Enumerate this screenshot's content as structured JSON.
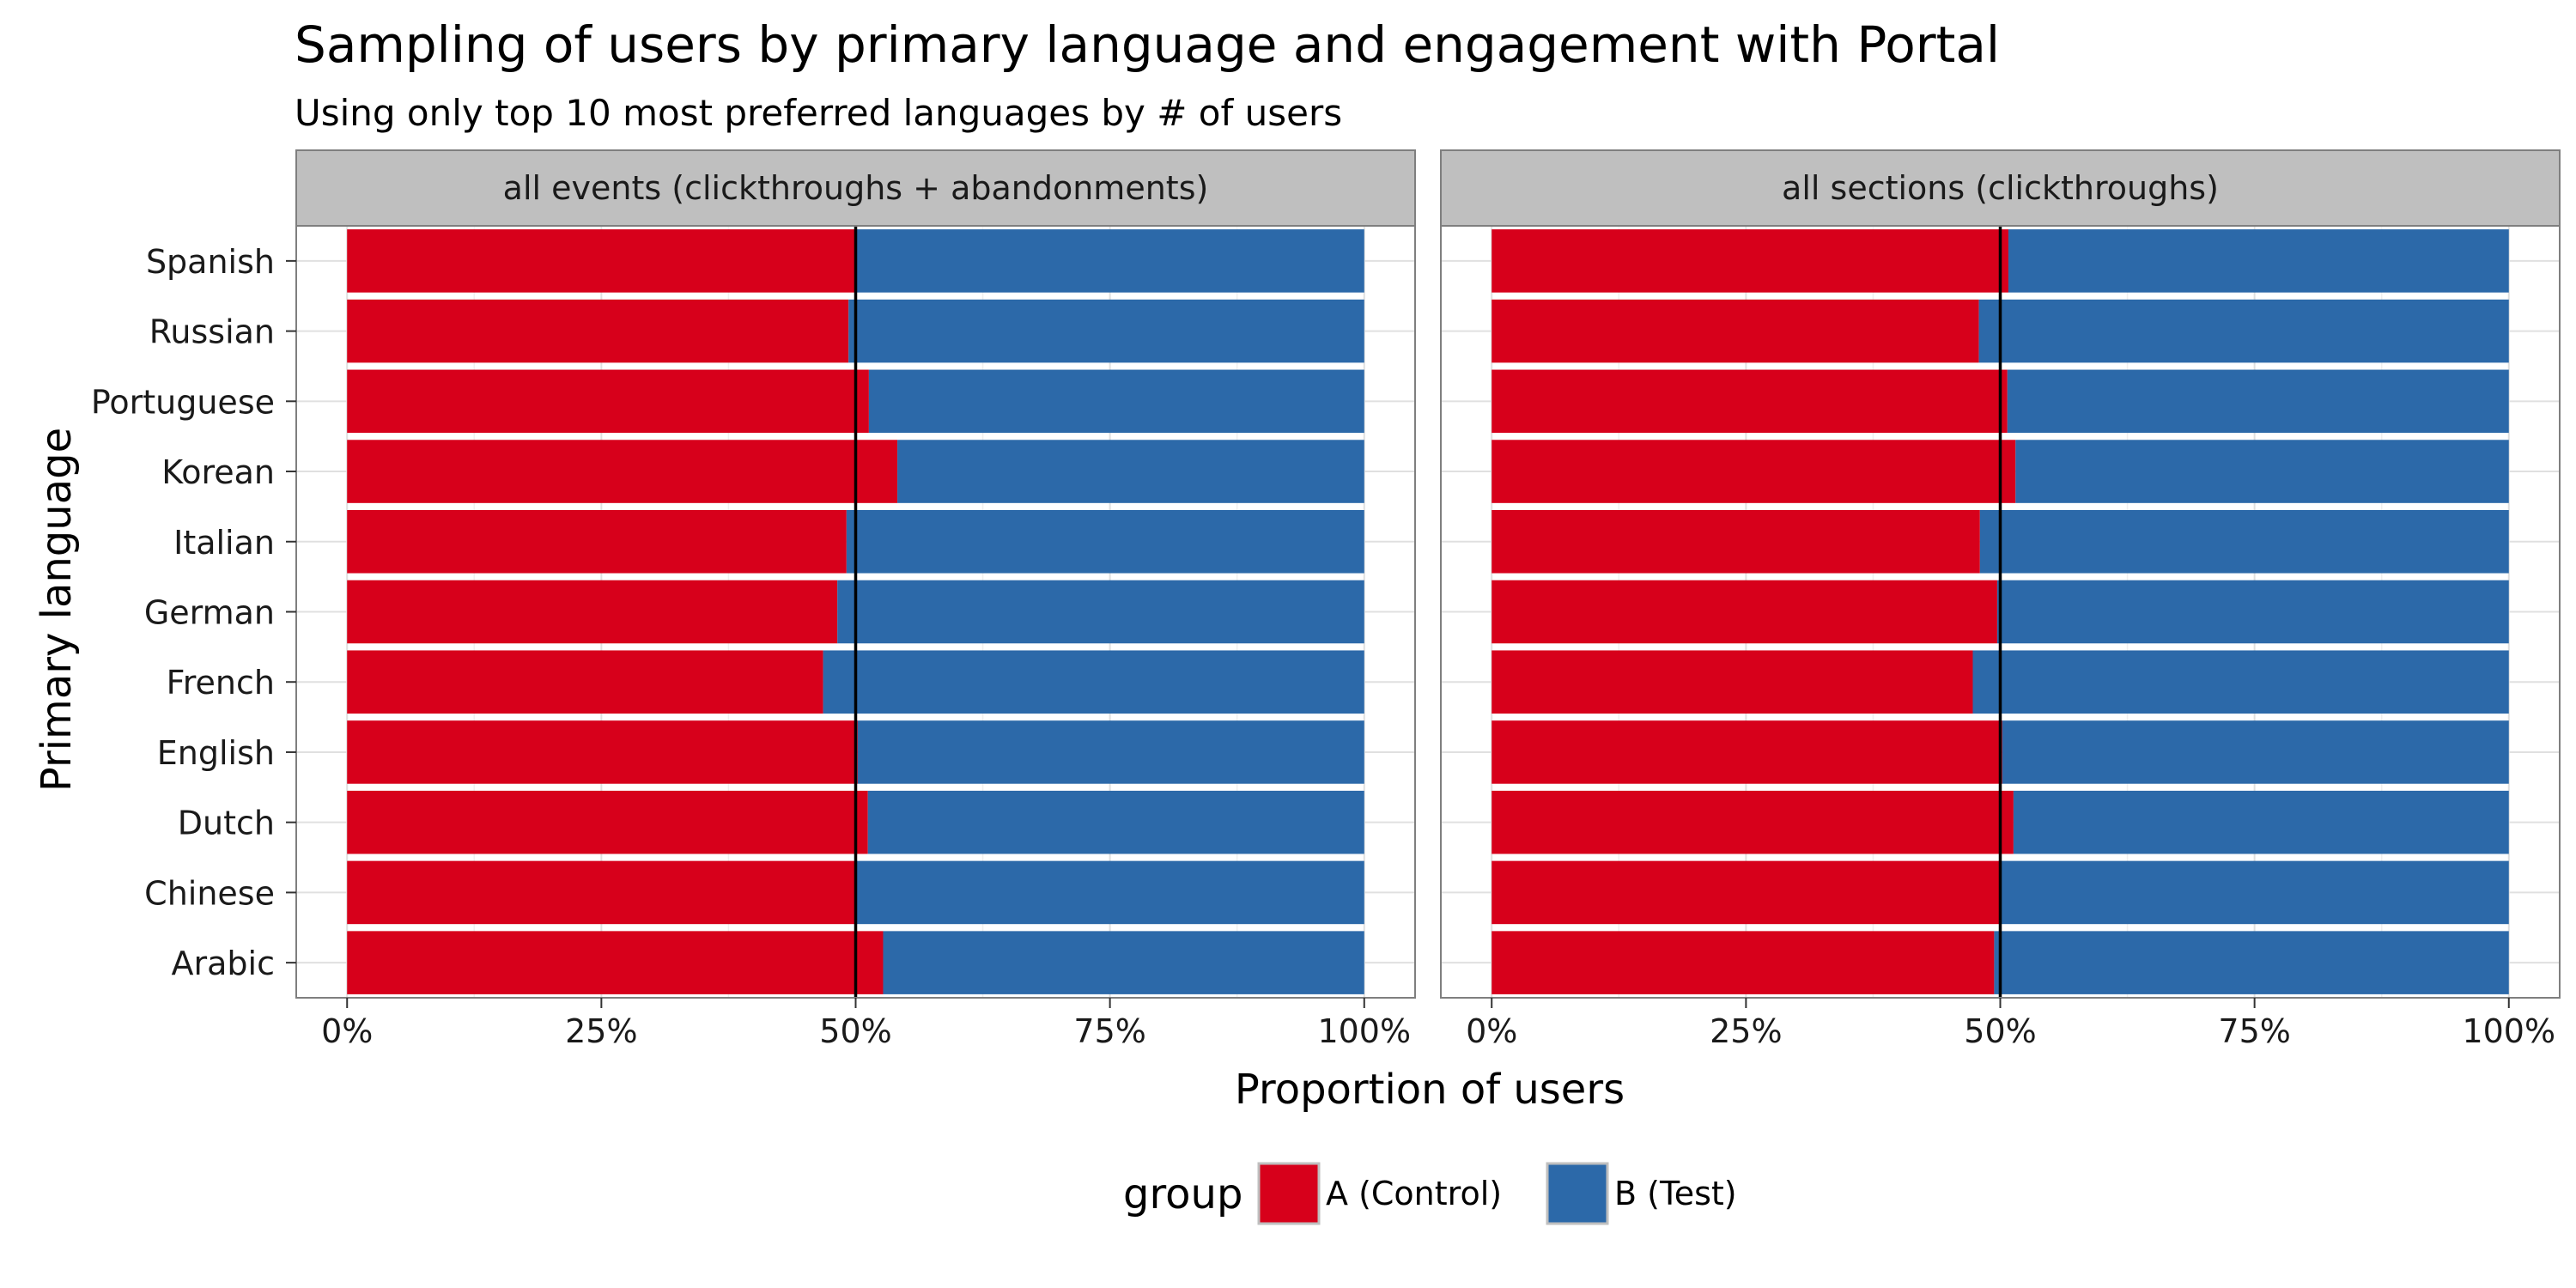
{
  "chart_data": {
    "type": "bar",
    "orientation": "horizontal",
    "stacked": true,
    "title": "Sampling of users by primary language and engagement with Portal",
    "subtitle": "Using only top 10 most preferred languages by # of users",
    "xlabel": "Proportion of users",
    "ylabel": "Primary language",
    "xlim": [
      0,
      1
    ],
    "x_ticks": [
      "0%",
      "25%",
      "50%",
      "75%",
      "100%"
    ],
    "reference_line": 0.5,
    "grid": true,
    "legend": {
      "title": "group",
      "position": "bottom",
      "entries": [
        {
          "label": "A (Control)",
          "color": "#d7001b"
        },
        {
          "label": "B (Test)",
          "color": "#2c69a9"
        }
      ]
    },
    "categories": [
      "Spanish",
      "Russian",
      "Portuguese",
      "Korean",
      "Italian",
      "German",
      "French",
      "English",
      "Dutch",
      "Chinese",
      "Arabic"
    ],
    "panels": [
      {
        "label": "all events (clickthroughs + abandonments)",
        "series": [
          {
            "name": "A (Control)",
            "values": [
              0.501,
              0.493,
              0.513,
              0.541,
              0.491,
              0.482,
              0.468,
              0.502,
              0.512,
              0.5,
              0.527
            ]
          },
          {
            "name": "B (Test)",
            "values": [
              0.499,
              0.507,
              0.487,
              0.459,
              0.509,
              0.518,
              0.532,
              0.498,
              0.488,
              0.5,
              0.473
            ]
          }
        ]
      },
      {
        "label": "all sections (clickthroughs)",
        "series": [
          {
            "name": "A (Control)",
            "values": [
              0.508,
              0.479,
              0.507,
              0.515,
              0.48,
              0.497,
              0.473,
              0.502,
              0.513,
              0.5,
              0.494
            ]
          },
          {
            "name": "B (Test)",
            "values": [
              0.492,
              0.521,
              0.493,
              0.485,
              0.52,
              0.503,
              0.527,
              0.498,
              0.487,
              0.5,
              0.506
            ]
          }
        ]
      }
    ]
  }
}
